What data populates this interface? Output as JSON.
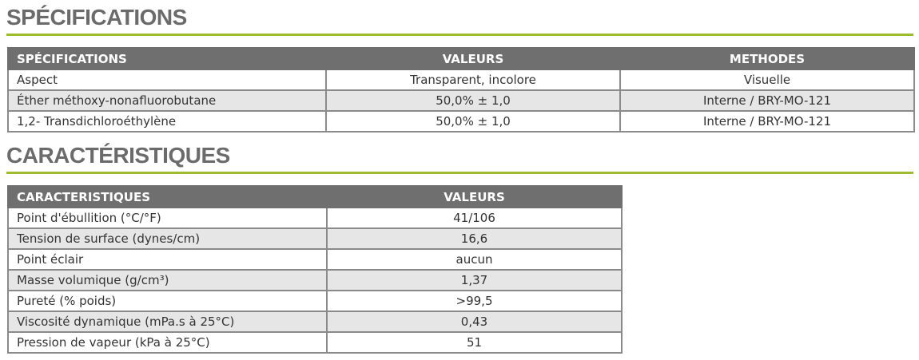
{
  "sections": [
    {
      "title": "SPÉCIFICATIONS",
      "table": {
        "headers": [
          "SPÉCIFICATIONS",
          "VALEURS",
          "METHODES"
        ],
        "rows": [
          [
            "Aspect",
            "Transparent, incolore",
            "Visuelle"
          ],
          [
            "Éther méthoxy-nonafluorobutane",
            "50,0% ± 1,0",
            "Interne / BRY-MO-121"
          ],
          [
            "1,2- Transdichloroéthylène",
            "50,0% ± 1,0",
            "Interne / BRY-MO-121"
          ]
        ]
      }
    },
    {
      "title": "CARACTÉRISTIQUES",
      "table": {
        "headers": [
          "CARACTERISTIQUES",
          "VALEURS"
        ],
        "rows": [
          [
            "Point d'ébullition (°C/°F)",
            "41/106"
          ],
          [
            "Tension de surface (dynes/cm)",
            "16,6"
          ],
          [
            "Point éclair",
            "aucun"
          ],
          [
            "Masse volumique (g/cm³)",
            "1,37"
          ],
          [
            "Pureté (% poids)",
            ">99,5"
          ],
          [
            "Viscosité dynamique (mPa.s à 25°C)",
            "0,43"
          ],
          [
            "Pression de vapeur (kPa à 25°C)",
            "51"
          ]
        ]
      }
    }
  ]
}
